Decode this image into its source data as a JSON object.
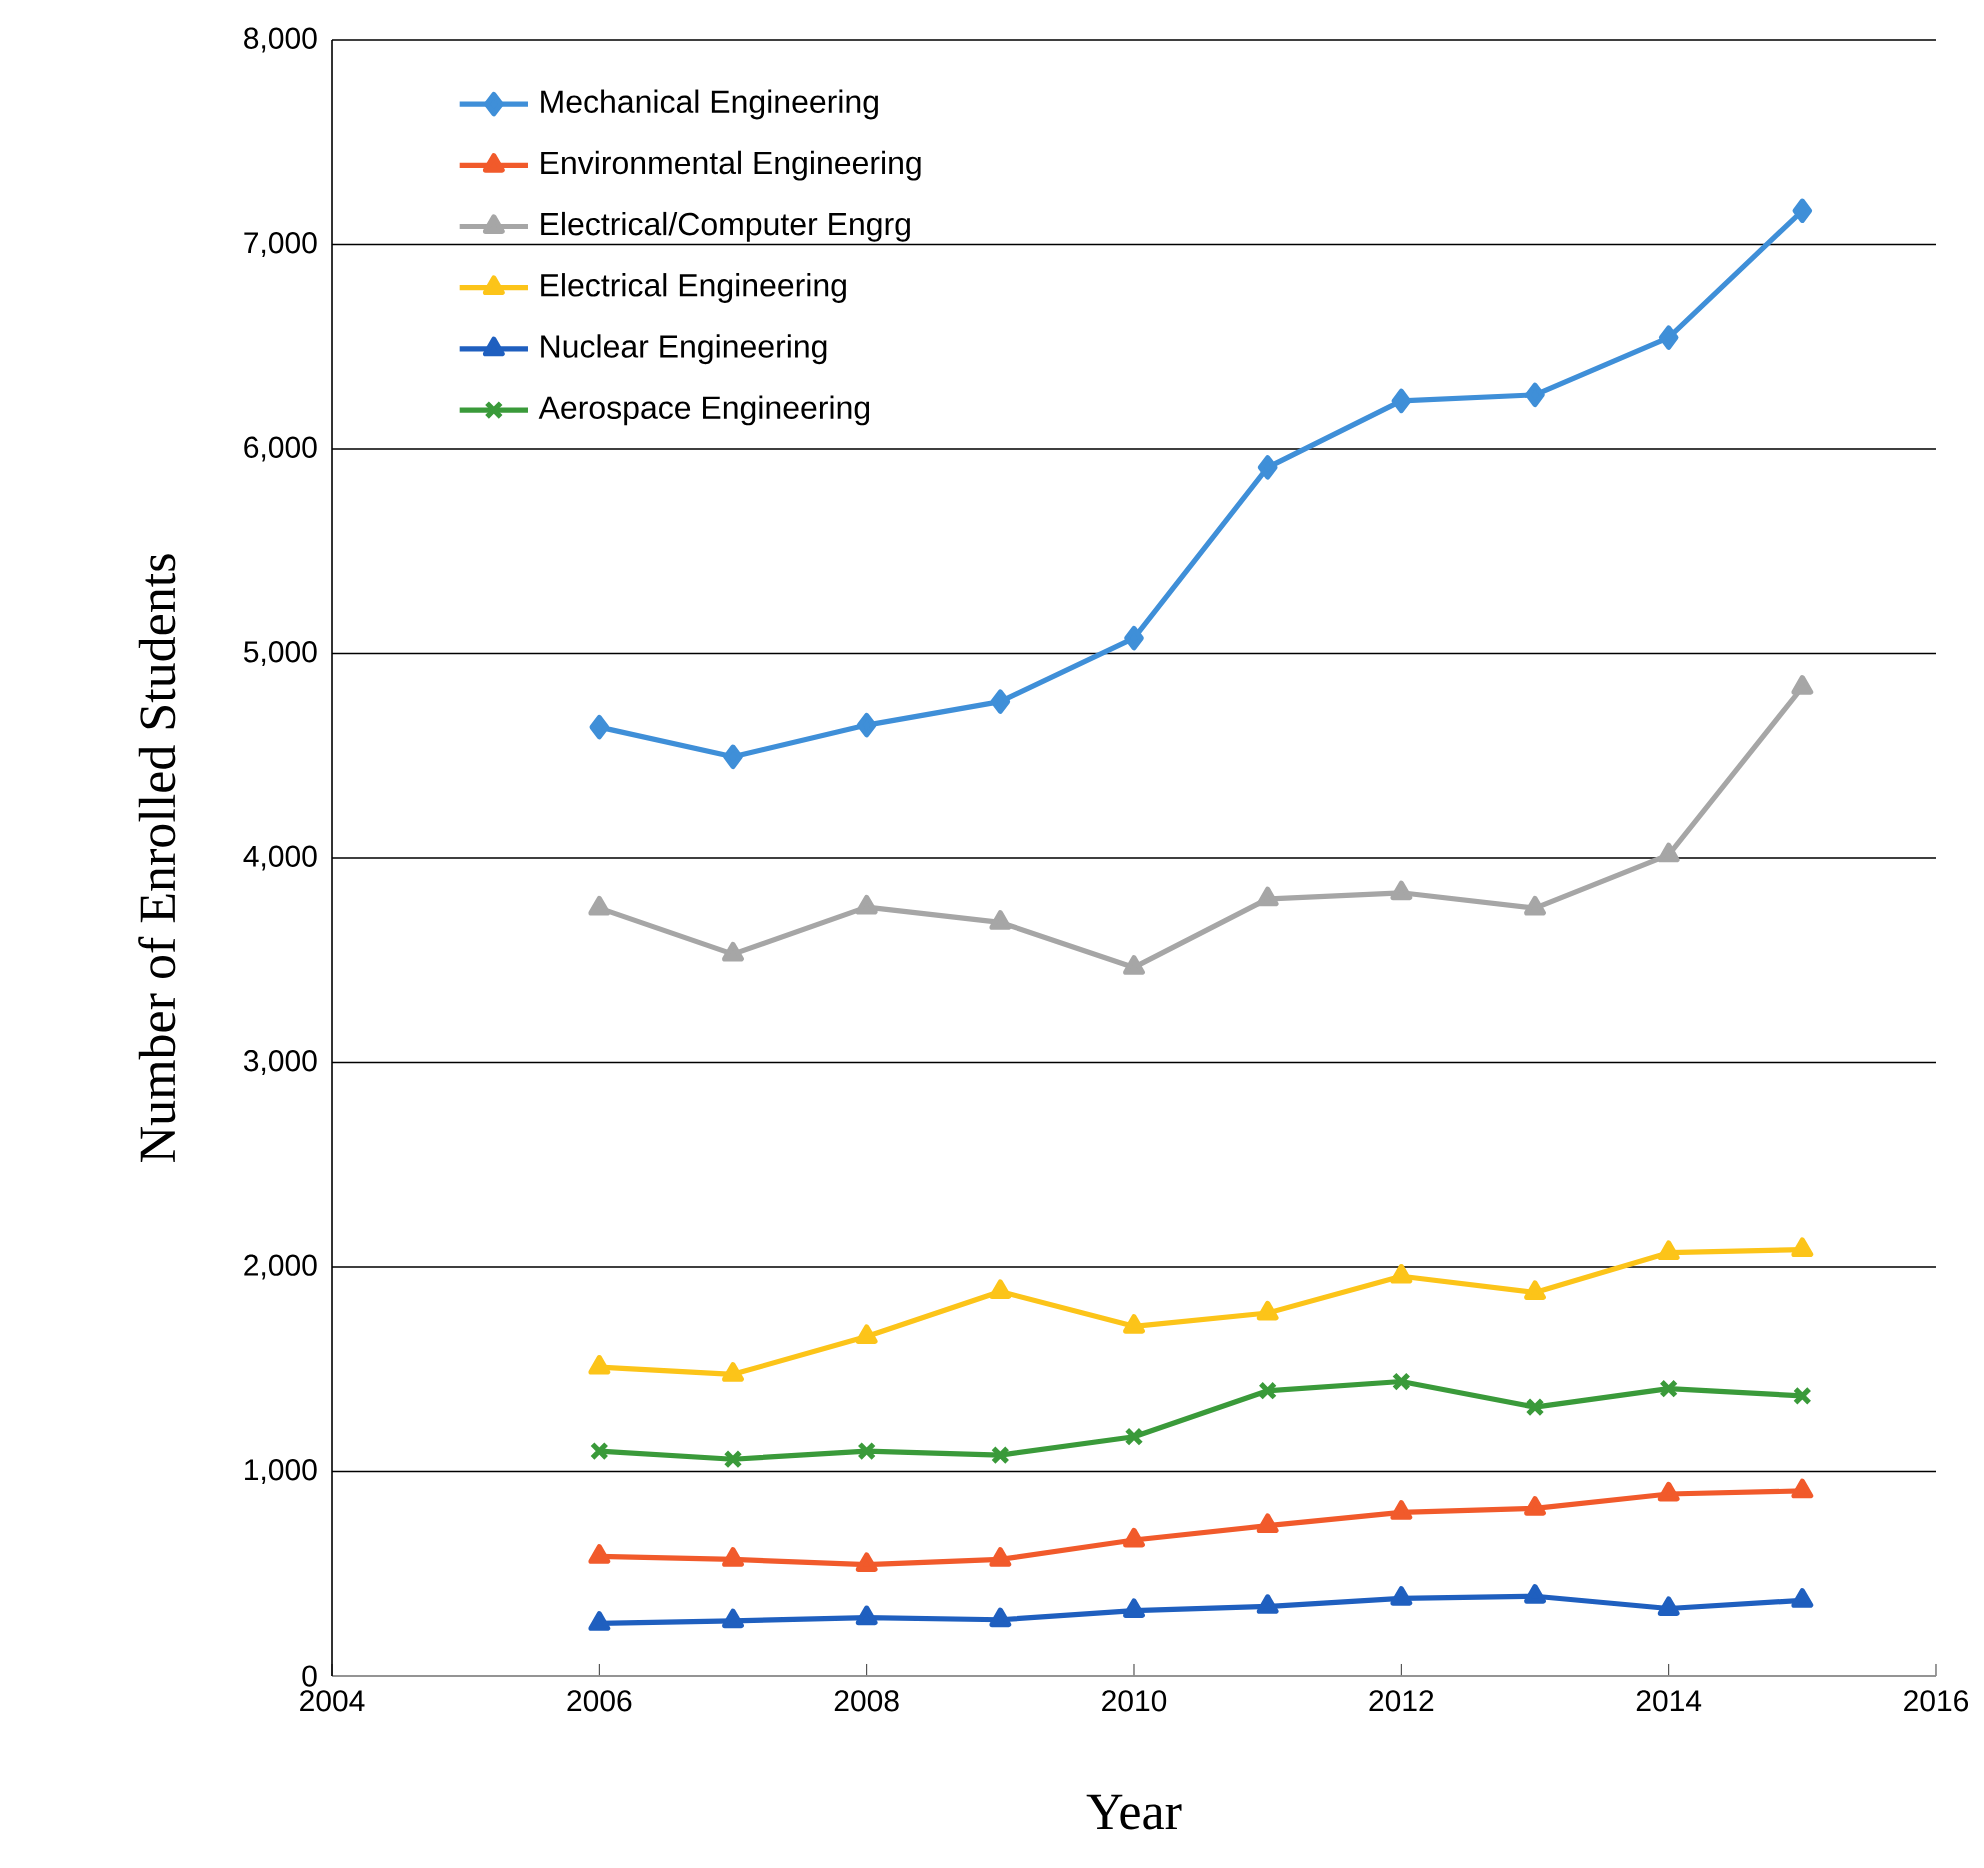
{
  "chart_data": {
    "type": "line",
    "xlabel": "Year",
    "ylabel": "Number of Enrolled Students",
    "x": [
      2006,
      2007,
      2008,
      2009,
      2010,
      2011,
      2012,
      2013,
      2014,
      2015
    ],
    "series": [
      {
        "name": "Mechanical Engineering",
        "color": "#3f8fd8",
        "marker": "diamond",
        "values": [
          4640,
          4495,
          4650,
          4765,
          5075,
          5910,
          6235,
          6265,
          6545,
          7165
        ]
      },
      {
        "name": "Environmental Engineering",
        "color": "#f15a2b",
        "marker": "triangle",
        "values": [
          585,
          570,
          545,
          570,
          665,
          735,
          800,
          820,
          890,
          905
        ]
      },
      {
        "name": "Electrical/Computer Engrg",
        "color": "#a6a6a6",
        "marker": "triangle",
        "values": [
          3755,
          3530,
          3760,
          3685,
          3465,
          3800,
          3830,
          3755,
          4015,
          4835
        ]
      },
      {
        "name": "Electrical Engineering",
        "color": "#fcc419",
        "marker": "triangle",
        "values": [
          1510,
          1475,
          1660,
          1880,
          1710,
          1775,
          1955,
          1875,
          2070,
          2085
        ]
      },
      {
        "name": "Nuclear Engineering",
        "color": "#1f5fbf",
        "marker": "triangle",
        "values": [
          257,
          270,
          285,
          275,
          320,
          340,
          380,
          390,
          330,
          370
        ]
      },
      {
        "name": "Aerospace Engineering",
        "color": "#3a9a3a",
        "marker": "cross",
        "values": [
          1100,
          1060,
          1100,
          1080,
          1170,
          1395,
          1440,
          1315,
          1405,
          1370
        ]
      }
    ],
    "xlim": [
      2004,
      2016
    ],
    "xticks": [
      2004,
      2006,
      2008,
      2010,
      2012,
      2014,
      2016
    ],
    "ylim": [
      0,
      8000
    ],
    "yticks": [
      {
        "value": 0,
        "label": "0"
      },
      {
        "value": 1000,
        "label": "1,000"
      },
      {
        "value": 2000,
        "label": "2,000"
      },
      {
        "value": 3000,
        "label": "3,000"
      },
      {
        "value": 4000,
        "label": "4,000"
      },
      {
        "value": 5000,
        "label": "5,000"
      },
      {
        "value": 6000,
        "label": "6,000"
      },
      {
        "value": 7000,
        "label": "7,000"
      },
      {
        "value": 8000,
        "label": "8,000"
      }
    ],
    "grid": "y",
    "legend": "top left",
    "line_style": "solid"
  }
}
